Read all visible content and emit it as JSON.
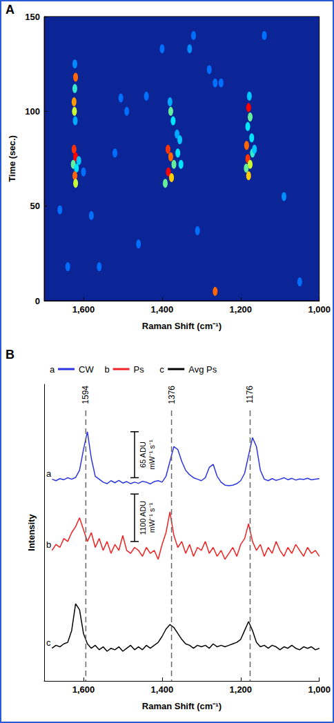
{
  "chart_data": [
    {
      "panel": "A",
      "type": "heatmap",
      "xlabel": "Raman Shift (cm⁻¹)",
      "ylabel": "Time (sec.)",
      "xlim": [
        1700,
        1000
      ],
      "xticks": [
        1600,
        1400,
        1200,
        1000
      ],
      "ylim": [
        0,
        150
      ],
      "yticks": [
        0,
        50,
        100,
        150
      ],
      "intensity_range": [
        0,
        1
      ],
      "color_scale": [
        "#0c2596",
        "#0050ff",
        "#00e5ff",
        "#ffff00",
        "#ff0000"
      ],
      "cells": [
        [
          1622,
          125,
          0.35
        ],
        [
          1620,
          118,
          0.9
        ],
        [
          1622,
          112,
          0.55
        ],
        [
          1624,
          105,
          0.85
        ],
        [
          1623,
          100,
          0.7
        ],
        [
          1621,
          95,
          0.4
        ],
        [
          1624,
          80,
          0.95
        ],
        [
          1620,
          76,
          1.0
        ],
        [
          1626,
          72,
          0.6
        ],
        [
          1618,
          70,
          0.5
        ],
        [
          1622,
          66,
          0.9
        ],
        [
          1620,
          62,
          0.7
        ],
        [
          1612,
          74,
          0.45
        ],
        [
          1600,
          68,
          0.3
        ],
        [
          1380,
          105,
          0.4
        ],
        [
          1378,
          100,
          0.6
        ],
        [
          1372,
          95,
          0.5
        ],
        [
          1362,
          88,
          0.4
        ],
        [
          1385,
          80,
          0.95
        ],
        [
          1378,
          76,
          0.9
        ],
        [
          1370,
          72,
          0.6
        ],
        [
          1384,
          68,
          1.0
        ],
        [
          1376,
          65,
          0.8
        ],
        [
          1360,
          78,
          0.5
        ],
        [
          1355,
          85,
          0.45
        ],
        [
          1352,
          72,
          0.5
        ],
        [
          1392,
          62,
          0.6
        ],
        [
          1178,
          108,
          0.45
        ],
        [
          1180,
          102,
          1.0
        ],
        [
          1176,
          97,
          0.6
        ],
        [
          1182,
          92,
          0.5
        ],
        [
          1172,
          86,
          0.5
        ],
        [
          1185,
          82,
          0.9
        ],
        [
          1170,
          78,
          0.55
        ],
        [
          1182,
          75,
          0.95
        ],
        [
          1176,
          72,
          0.7
        ],
        [
          1165,
          80,
          0.45
        ],
        [
          1186,
          70,
          0.6
        ],
        [
          1180,
          66,
          0.8
        ],
        [
          1330,
          133,
          0.35
        ],
        [
          1320,
          140,
          0.3
        ],
        [
          1490,
          100,
          0.3
        ],
        [
          1520,
          78,
          0.3
        ],
        [
          1580,
          45,
          0.3
        ],
        [
          1440,
          108,
          0.3
        ],
        [
          1310,
          37,
          0.3
        ],
        [
          1265,
          5,
          0.9
        ],
        [
          1090,
          55,
          0.35
        ],
        [
          1250,
          115,
          0.3
        ],
        [
          1640,
          18,
          0.3
        ],
        [
          1560,
          18,
          0.3
        ],
        [
          1280,
          122,
          0.3
        ],
        [
          1505,
          107,
          0.3
        ],
        [
          1400,
          133,
          0.3
        ],
        [
          1140,
          140,
          0.3
        ],
        [
          1050,
          10,
          0.3
        ],
        [
          1460,
          30,
          0.3
        ],
        [
          1660,
          48,
          0.3
        ],
        [
          1265,
          115,
          0.3
        ]
      ]
    },
    {
      "panel": "B",
      "type": "line",
      "xlabel": "Raman Shift (cm⁻¹)",
      "ylabel": "Intensity",
      "xlim": [
        1700,
        1000
      ],
      "xticks": [
        1600,
        1400,
        1200,
        1000
      ],
      "ylim": [
        0,
        100
      ],
      "tick_labels": "x",
      "legend": "top",
      "x": [
        1680,
        1670,
        1660,
        1650,
        1640,
        1630,
        1620,
        1610,
        1600,
        1590,
        1580,
        1570,
        1560,
        1550,
        1540,
        1530,
        1520,
        1510,
        1500,
        1490,
        1480,
        1470,
        1460,
        1450,
        1440,
        1430,
        1420,
        1410,
        1400,
        1390,
        1380,
        1370,
        1360,
        1350,
        1340,
        1330,
        1320,
        1310,
        1300,
        1290,
        1280,
        1270,
        1260,
        1250,
        1240,
        1230,
        1220,
        1210,
        1200,
        1190,
        1180,
        1170,
        1160,
        1150,
        1140,
        1130,
        1120,
        1110,
        1100,
        1090,
        1080,
        1070,
        1060,
        1050,
        1040,
        1030,
        1020,
        1010,
        1000
      ],
      "series": [
        {
          "label": "a",
          "name": "CW",
          "color": "#2a35e0",
          "values": [
            68,
            67.5,
            68.2,
            67.8,
            68.5,
            68,
            68.6,
            71,
            78,
            84,
            75,
            69,
            68,
            67,
            66.5,
            67.5,
            66.8,
            67.6,
            66.7,
            67.2,
            66.5,
            67,
            66.6,
            67.3,
            67,
            66.4,
            67.2,
            67.5,
            67,
            69,
            74,
            79,
            78,
            74,
            71,
            69.5,
            68.5,
            68,
            67.5,
            68.5,
            72,
            73,
            69,
            67,
            66,
            65.8,
            66,
            66.5,
            67.5,
            70,
            76,
            82,
            79,
            71,
            68,
            67.5,
            68.2,
            67.6,
            68,
            68.5,
            67.8,
            68.3,
            67.7,
            68.1,
            67.9,
            68.3,
            67.8,
            68,
            68.2
          ]
        },
        {
          "label": "b",
          "name": "Ps",
          "color": "#ee2222",
          "values": [
            44,
            46,
            45,
            48,
            47,
            50,
            52,
            55,
            51,
            47,
            50,
            45,
            48,
            44,
            47,
            43,
            46,
            44,
            49,
            44,
            43,
            45,
            44,
            42,
            45,
            43,
            44,
            41,
            46,
            50,
            57,
            49,
            45,
            47,
            43,
            46,
            42,
            45,
            44,
            47,
            43,
            45,
            42,
            44,
            41,
            43,
            45,
            42,
            46,
            48,
            53,
            47,
            44,
            46,
            42,
            45,
            43,
            47,
            44,
            42,
            45,
            43,
            46,
            44,
            42,
            45,
            43,
            44,
            42
          ]
        },
        {
          "label": "c",
          "name": "Avg Ps",
          "color": "#000000",
          "values": [
            11,
            12,
            11.5,
            12.5,
            13,
            17,
            26,
            24,
            16,
            12.5,
            11,
            12,
            10.5,
            11.5,
            10,
            11,
            10.5,
            11.5,
            10,
            11,
            12,
            10.5,
            11.5,
            10.5,
            12,
            11,
            12,
            13,
            15,
            17.5,
            19,
            18,
            16,
            14,
            12.5,
            12,
            11,
            12,
            11.5,
            12,
            11,
            12.5,
            11.5,
            12,
            11.5,
            12,
            12.5,
            13,
            14,
            17,
            20,
            17,
            13,
            11.5,
            12,
            11,
            12,
            11.5,
            10.5,
            11.5,
            11,
            12,
            11,
            10.5,
            11.5,
            11,
            11.5,
            10.5,
            11
          ]
        }
      ],
      "peaks": [
        1594,
        1376,
        1176
      ],
      "scale_bars": [
        {
          "value": 65,
          "unit": "ADU mW⁻¹ s⁻¹",
          "x": 1470,
          "span": [
            68.5,
            84
          ]
        },
        {
          "value": 1100,
          "unit": "ADU mW⁻¹ s⁻¹",
          "x": 1470,
          "span": [
            47,
            63
          ]
        }
      ]
    }
  ]
}
